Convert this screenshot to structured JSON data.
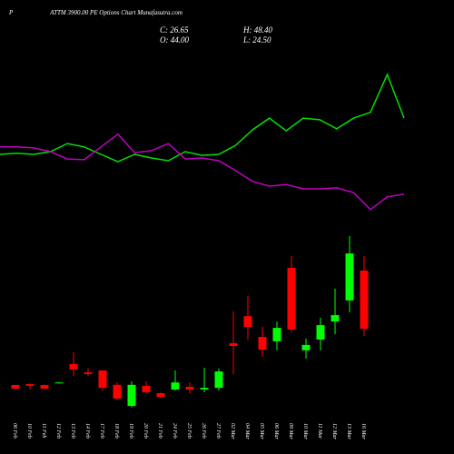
{
  "chart_data": {
    "type": "candlestick",
    "symbol_prefix": "P",
    "title": "ATTM 3900.00 PE Options Chart Munafasutra.com",
    "info": [
      "C: 26.65",
      "H: 48.40",
      "O: 44.00",
      "L: 24.50"
    ],
    "categories": [
      "06 Feb",
      "10 Feb",
      "11 Feb",
      "12 Feb",
      "13 Feb",
      "14 Feb",
      "17 Feb",
      "18 Feb",
      "19 Feb",
      "20 Feb",
      "21 Feb",
      "24 Feb",
      "25 Feb",
      "26 Feb",
      "27 Feb",
      "02 Mar",
      "04 Mar",
      "05 Mar",
      "06 Mar",
      "09 Mar",
      "10 Mar",
      "11 Mar",
      "12 Mar",
      "13 Mar",
      "16 Mar"
    ],
    "open": [
      9.85,
      10.1,
      9.85,
      10.4,
      16.1,
      13.6,
      14.2,
      9.9,
      3.6,
      9.6,
      7.4,
      8.5,
      9.3,
      8.5,
      9.0,
      22.3,
      30.4,
      24.2,
      22.9,
      44.8,
      20.2,
      23.4,
      28.8,
      35.1,
      44.0
    ],
    "high": [
      9.9,
      10.3,
      10.0,
      10.7,
      19.6,
      14.9,
      14.2,
      10.7,
      10.9,
      10.9,
      7.6,
      14.2,
      10.6,
      15.0,
      14.8,
      31.8,
      36.4,
      27.2,
      28.8,
      48.3,
      23.7,
      29.9,
      38.6,
      54.3,
      48.4
    ],
    "low": [
      8.6,
      8.5,
      8.6,
      10.3,
      12.6,
      12.6,
      8.2,
      5.5,
      3.1,
      7.4,
      6.0,
      8.2,
      7.4,
      7.7,
      8.2,
      13.1,
      23.4,
      18.3,
      20.2,
      25.6,
      17.7,
      20.2,
      25.0,
      31.5,
      24.5
    ],
    "close": [
      8.77,
      9.6,
      8.75,
      10.6,
      14.5,
      13.1,
      9.0,
      5.8,
      9.9,
      7.7,
      6.3,
      10.6,
      8.5,
      9.0,
      13.9,
      21.5,
      27.2,
      20.4,
      26.9,
      26.4,
      21.8,
      27.7,
      30.7,
      49.1,
      26.65
    ],
    "up_color": "#00ff00",
    "down_color": "#ff0000",
    "lines": [
      {
        "color": "#00e000",
        "values": [
          78.7,
          79.0,
          78.7,
          79.5,
          81.9,
          80.9,
          78.7,
          76.5,
          78.7,
          77.6,
          76.8,
          79.5,
          78.4,
          78.7,
          81.4,
          86.0,
          89.5,
          85.7,
          89.5,
          89.0,
          86.3,
          89.5,
          91.2,
          102.5,
          89.5
        ]
      },
      {
        "color": "#c000c0",
        "values": [
          80.9,
          80.9,
          80.6,
          79.5,
          77.3,
          77.1,
          80.9,
          84.7,
          79.2,
          79.8,
          81.9,
          77.3,
          77.6,
          76.8,
          73.8,
          70.6,
          69.2,
          69.7,
          68.4,
          68.4,
          68.7,
          67.3,
          62.2,
          66.0,
          66.8
        ]
      }
    ]
  }
}
